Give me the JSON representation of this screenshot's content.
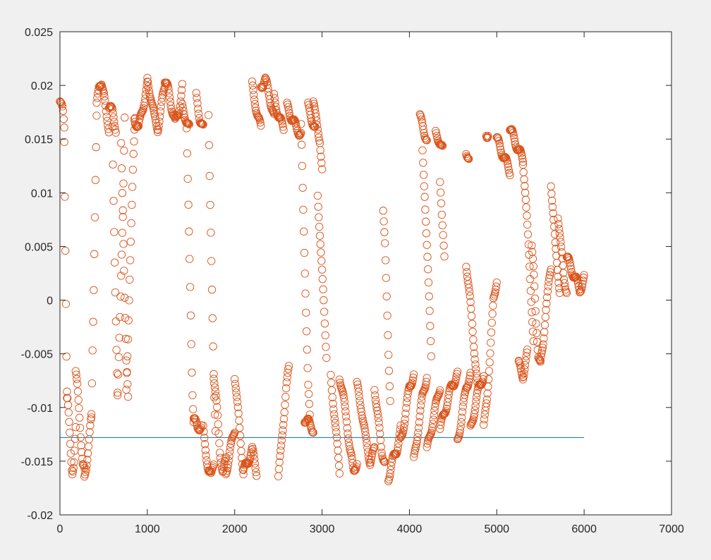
{
  "figure": {
    "background": "#f0f0f0"
  },
  "chart_data": {
    "type": "scatter",
    "title": "",
    "xlabel": "",
    "ylabel": "",
    "xlim": [
      0,
      7000
    ],
    "ylim": [
      -0.02,
      0.025
    ],
    "xticks": [
      0,
      1000,
      2000,
      3000,
      4000,
      5000,
      6000,
      7000
    ],
    "xtick_labels": [
      "0",
      "1000",
      "2000",
      "3000",
      "4000",
      "5000",
      "6000",
      "7000"
    ],
    "yticks": [
      -0.02,
      -0.015,
      -0.01,
      -0.005,
      0,
      0.005,
      0.01,
      0.015,
      0.02,
      0.025
    ],
    "ytick_labels": [
      "-0.02",
      "-0.015",
      "-0.01",
      "-0.005",
      "0",
      "0.005",
      "0.01",
      "0.015",
      "0.02",
      "0.025"
    ],
    "grid": false,
    "box": true,
    "series": [
      {
        "kind": "line",
        "color": "#0072bd",
        "x": [
          0,
          6000
        ],
        "y": [
          -0.0128,
          -0.0128
        ]
      },
      {
        "kind": "scatter",
        "marker": "circle",
        "color": "#d95319",
        "segments": [
          {
            "x0": 0,
            "x1": 50,
            "ys": [
              0.0185,
              0.018,
              0.0175,
              0.016
            ]
          },
          {
            "x0": 50,
            "x1": 80,
            "ys": [
              0.015,
              0.01,
              0.005,
              0.0,
              -0.005,
              -0.009
            ]
          },
          {
            "x0": 80,
            "x1": 180,
            "ys": [
              -0.0085,
              -0.011,
              -0.014,
              -0.016,
              -0.015,
              -0.012
            ]
          },
          {
            "x0": 180,
            "x1": 280,
            "ys": [
              -0.007,
              -0.008,
              -0.01,
              -0.013,
              -0.0155,
              -0.016
            ]
          },
          {
            "x0": 280,
            "x1": 360,
            "ys": [
              -0.0165,
              -0.015,
              -0.013,
              -0.011
            ]
          },
          {
            "x0": 360,
            "x1": 420,
            "ys": [
              -0.011,
              -0.005,
              0.0,
              0.006,
              0.012,
              0.017
            ]
          },
          {
            "x0": 420,
            "x1": 560,
            "ys": [
              0.018,
              0.02,
              0.0205,
              0.019,
              0.017,
              0.016
            ]
          },
          {
            "x0": 560,
            "x1": 640,
            "ys": [
              0.018,
              0.0175,
              0.016
            ]
          },
          {
            "x0": 600,
            "x1": 660,
            "ys": [
              0.016,
              0.01,
              0.005,
              0.0,
              -0.005,
              -0.009
            ]
          },
          {
            "x0": 660,
            "x1": 740,
            "ys": [
              -0.009,
              -0.005,
              0.0,
              0.005,
              0.01,
              0.017
            ]
          },
          {
            "x0": 700,
            "x1": 780,
            "ys": [
              0.015,
              0.008,
              0.0,
              -0.006,
              -0.009
            ]
          },
          {
            "x0": 760,
            "x1": 860,
            "ys": [
              -0.0085,
              -0.003,
              0.003,
              0.008,
              0.013,
              0.017
            ]
          },
          {
            "x0": 850,
            "x1": 1000,
            "ys": [
              0.017,
              0.016,
              0.018,
              0.02
            ]
          },
          {
            "x0": 1000,
            "x1": 1200,
            "ys": [
              0.0205,
              0.019,
              0.017,
              0.016,
              0.018,
              0.02
            ]
          },
          {
            "x0": 1200,
            "x1": 1400,
            "ys": [
              0.0205,
              0.0195,
              0.018,
              0.0165,
              0.0175,
              0.02
            ]
          },
          {
            "x0": 1400,
            "x1": 1480,
            "ys": [
              0.018,
              0.017,
              0.016
            ]
          },
          {
            "x0": 1450,
            "x1": 1530,
            "ys": [
              0.016,
              0.01,
              0.004,
              -0.002,
              -0.008,
              -0.011
            ]
          },
          {
            "x0": 1530,
            "x1": 1620,
            "ys": [
              -0.011,
              -0.012,
              -0.0115
            ]
          },
          {
            "x0": 1560,
            "x1": 1640,
            "ys": [
              0.019,
              0.017,
              0.016
            ]
          },
          {
            "x0": 1640,
            "x1": 1760,
            "ys": [
              -0.012,
              -0.014,
              -0.016,
              -0.0165,
              -0.015
            ]
          },
          {
            "x0": 1700,
            "x1": 1780,
            "ys": [
              0.017,
              0.01,
              0.004,
              -0.002,
              -0.008,
              -0.012
            ]
          },
          {
            "x0": 1760,
            "x1": 1900,
            "ys": [
              -0.007,
              -0.01,
              -0.014,
              -0.016,
              -0.015
            ]
          },
          {
            "x0": 1900,
            "x1": 2000,
            "ys": [
              -0.016,
              -0.014,
              -0.012
            ]
          },
          {
            "x0": 2000,
            "x1": 2100,
            "ys": [
              -0.007,
              -0.01,
              -0.013,
              -0.016
            ]
          },
          {
            "x0": 2100,
            "x1": 2250,
            "ys": [
              -0.016,
              -0.015,
              -0.014,
              -0.016
            ]
          },
          {
            "x0": 2200,
            "x1": 2300,
            "ys": [
              0.02,
              0.0185,
              0.017,
              0.016
            ]
          },
          {
            "x0": 2300,
            "x1": 2450,
            "ys": [
              0.02,
              0.0205,
              0.019,
              0.017
            ]
          },
          {
            "x0": 2450,
            "x1": 2560,
            "ys": [
              0.019,
              0.017,
              0.016
            ]
          },
          {
            "x0": 2500,
            "x1": 2620,
            "ys": [
              -0.0165,
              -0.014,
              -0.011,
              -0.008,
              -0.0065
            ]
          },
          {
            "x0": 2600,
            "x1": 2760,
            "ys": [
              0.018,
              0.017,
              0.016,
              0.0155
            ]
          },
          {
            "x0": 2760,
            "x1": 2860,
            "ys": [
              0.016,
              0.01,
              0.004,
              -0.002,
              -0.008,
              -0.011
            ]
          },
          {
            "x0": 2800,
            "x1": 2900,
            "ys": [
              -0.011,
              -0.012
            ]
          },
          {
            "x0": 2840,
            "x1": 2920,
            "ys": [
              0.018,
              0.017,
              0.016
            ]
          },
          {
            "x0": 2900,
            "x1": 3000,
            "ys": [
              0.0185,
              0.017,
              0.016,
              0.015,
              0.012
            ]
          },
          {
            "x0": 2950,
            "x1": 3050,
            "ys": [
              0.01,
              0.005,
              0.0,
              -0.005
            ]
          },
          {
            "x0": 3100,
            "x1": 3200,
            "ys": [
              -0.007,
              -0.01,
              -0.013,
              -0.016
            ]
          },
          {
            "x0": 3200,
            "x1": 3400,
            "ys": [
              -0.007,
              -0.009,
              -0.011,
              -0.014,
              -0.016,
              -0.015
            ]
          },
          {
            "x0": 3400,
            "x1": 3600,
            "ys": [
              -0.008,
              -0.01,
              -0.013,
              -0.015,
              -0.014
            ]
          },
          {
            "x0": 3600,
            "x1": 3720,
            "ys": [
              -0.008,
              -0.011,
              -0.014,
              -0.015
            ]
          },
          {
            "x0": 3700,
            "x1": 3780,
            "ys": [
              0.0085,
              0.005,
              0.0,
              -0.005,
              -0.009
            ]
          },
          {
            "x0": 3760,
            "x1": 3900,
            "ys": [
              -0.0165,
              -0.015,
              -0.014,
              -0.012
            ]
          },
          {
            "x0": 3900,
            "x1": 4050,
            "ys": [
              -0.013,
              -0.011,
              -0.008,
              -0.007
            ]
          },
          {
            "x0": 4050,
            "x1": 4200,
            "ys": [
              -0.015,
              -0.012,
              -0.009,
              -0.007
            ]
          },
          {
            "x0": 4120,
            "x1": 4200,
            "ys": [
              0.017,
              0.016,
              0.015
            ]
          },
          {
            "x0": 4150,
            "x1": 4250,
            "ys": [
              0.014,
              0.01,
              0.005,
              0.0,
              -0.005
            ]
          },
          {
            "x0": 4200,
            "x1": 4350,
            "ys": [
              -0.014,
              -0.012,
              -0.01,
              -0.008
            ]
          },
          {
            "x0": 4300,
            "x1": 4380,
            "ys": [
              0.0155,
              0.015,
              0.014
            ]
          },
          {
            "x0": 4350,
            "x1": 4400,
            "ys": [
              0.011,
              0.007,
              0.004
            ]
          },
          {
            "x0": 4350,
            "x1": 4550,
            "ys": [
              -0.012,
              -0.01,
              -0.008,
              -0.007
            ]
          },
          {
            "x0": 4550,
            "x1": 4700,
            "ys": [
              -0.013,
              -0.011,
              -0.008,
              -0.007
            ]
          },
          {
            "x0": 4650,
            "x1": 4680,
            "ys": [
              0.014,
              0.013
            ]
          },
          {
            "x0": 4650,
            "x1": 4780,
            "ys": [
              0.0035,
              0.0,
              -0.004,
              -0.008
            ]
          },
          {
            "x0": 4700,
            "x1": 4850,
            "ys": [
              -0.012,
              -0.01,
              -0.008,
              -0.007
            ]
          },
          {
            "x0": 4880,
            "x1": 4900,
            "ys": [
              0.0155
            ]
          },
          {
            "x0": 4850,
            "x1": 5000,
            "ys": [
              -0.012,
              -0.009,
              -0.005,
              0.0,
              0.002
            ]
          },
          {
            "x0": 5000,
            "x1": 5150,
            "ys": [
              0.015,
              0.014,
              0.013,
              0.012
            ]
          },
          {
            "x0": 5150,
            "x1": 5300,
            "ys": [
              0.016,
              0.015,
              0.014,
              0.013
            ]
          },
          {
            "x0": 5250,
            "x1": 5350,
            "ys": [
              -0.006,
              -0.007,
              -0.005
            ]
          },
          {
            "x0": 5300,
            "x1": 5420,
            "ys": [
              0.013,
              0.01,
              0.007,
              0.004,
              0.0,
              -0.004
            ]
          },
          {
            "x0": 5400,
            "x1": 5500,
            "ys": [
              0.005,
              0.002,
              -0.002,
              -0.005,
              -0.006
            ]
          },
          {
            "x0": 5500,
            "x1": 5620,
            "ys": [
              -0.006,
              -0.004,
              -0.001,
              0.001,
              0.003
            ]
          },
          {
            "x0": 5620,
            "x1": 5720,
            "ys": [
              0.011,
              0.008,
              0.005,
              0.003,
              0.001
            ]
          },
          {
            "x0": 5700,
            "x1": 5800,
            "ys": [
              0.008,
              0.005,
              0.002,
              0.001
            ]
          },
          {
            "x0": 5800,
            "x1": 6000,
            "ys": [
              0.004,
              0.003,
              0.002,
              0.001,
              0.002
            ]
          }
        ]
      }
    ]
  }
}
